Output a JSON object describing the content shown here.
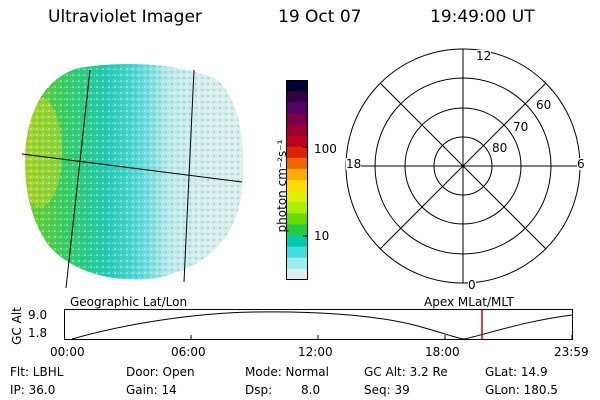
{
  "header": {
    "title": "Ultraviolet Imager",
    "date": "19 Oct 07",
    "time": "19:49:00 UT"
  },
  "colorbar": {
    "unit_label": "photon cm⁻²s⁻¹",
    "ticks": [
      "100",
      "10"
    ],
    "colors": [
      "#000033",
      "#330044",
      "#550066",
      "#77004a",
      "#990033",
      "#bb0022",
      "#dd2200",
      "#ee6600",
      "#ffaa00",
      "#ffdd00",
      "#ddee00",
      "#aaee00",
      "#66dd00",
      "#22cc44",
      "#00ccaa",
      "#44dddd",
      "#99eeee",
      "#ddf0f0"
    ]
  },
  "polar_plot": {
    "clock_labels": {
      "top": "12",
      "left": "18",
      "right": "6",
      "bottom": "0"
    },
    "lat_labels": [
      "60",
      "70",
      "80"
    ]
  },
  "geo_panel": {
    "label": "Geographic Lat/Lon"
  },
  "apex_label": "Apex MLat/MLT",
  "timeline": {
    "axis_label": "GC Alt",
    "y_ticks": [
      "9.0",
      "1.8"
    ],
    "x_ticks": [
      "00:00",
      "06:00",
      "12:00",
      "18:00",
      "23:59"
    ],
    "marker_color": "#cc0000"
  },
  "info": {
    "row1": [
      "Flt: LBHL",
      "Door: Open",
      "Mode: Normal",
      "GC Alt: 3.2 Re",
      "GLat: 14.9"
    ],
    "row2": [
      "IP: 36.0",
      "Gain: 14",
      "Dsp:",
      "8.0",
      "Seq: 39",
      "GLon: 180.5"
    ]
  }
}
